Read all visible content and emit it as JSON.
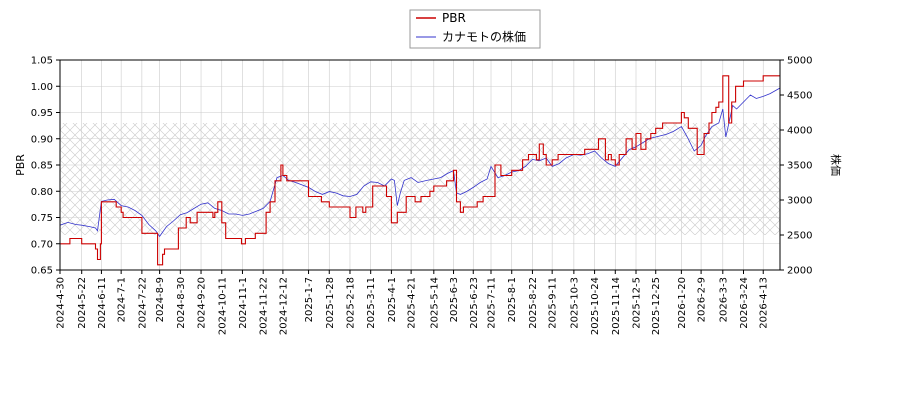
{
  "chart_data": {
    "type": "line",
    "legend": {
      "placement": "top-center",
      "entries": [
        {
          "name": "PBR",
          "color": "#cc0000"
        },
        {
          "name": "カナモトの株価",
          "color": "#3333cc"
        }
      ]
    },
    "ylabel_left": "PBR",
    "ylabel_right": "株価",
    "ylim_left": [
      0.65,
      1.05
    ],
    "ylim_right": [
      2000,
      5000
    ],
    "yticks_left": [
      "0.65",
      "0.70",
      "0.75",
      "0.80",
      "0.85",
      "0.90",
      "0.95",
      "1.00",
      "1.05"
    ],
    "yticks_right": [
      "2000",
      "2500",
      "3000",
      "3500",
      "4000",
      "4500",
      "5000"
    ],
    "xlim": [
      "2024-04-30",
      "2026-04-30"
    ],
    "xticks": [
      "2024-4-30",
      "2024-5-22",
      "2024-6-11",
      "2024-7-1",
      "2024-7-22",
      "2024-8-9",
      "2024-8-30",
      "2024-9-20",
      "2024-10-11",
      "2024-11-1",
      "2024-11-22",
      "2024-12-12",
      "2025-1-7",
      "2025-1-28",
      "2025-2-18",
      "2025-3-11",
      "2025-4-1",
      "2025-4-21",
      "2025-5-14",
      "2025-6-3",
      "2025-6-23",
      "2025-7-11",
      "2025-8-1",
      "2025-8-22",
      "2025-9-11",
      "2025-10-3",
      "2025-10-24",
      "2025-11-14",
      "2025-12-5",
      "2025-12-25",
      "2026-1-20",
      "2026-2-9",
      "2026-3-3",
      "2026-3-24",
      "2026-4-13"
    ],
    "grid": true,
    "hatch_band": [
      2500,
      4100
    ],
    "series": [
      {
        "name": "PBR",
        "axis": "left",
        "color": "#cc0000",
        "x": [
          "2024-04-30",
          "2024-05-08",
          "2024-05-10",
          "2024-05-20",
          "2024-05-22",
          "2024-06-03",
          "2024-06-05",
          "2024-06-07",
          "2024-06-10",
          "2024-06-11",
          "2024-06-13",
          "2024-06-20",
          "2024-06-26",
          "2024-07-01",
          "2024-07-03",
          "2024-07-12",
          "2024-07-22",
          "2024-08-05",
          "2024-08-07",
          "2024-08-09",
          "2024-08-12",
          "2024-08-14",
          "2024-08-26",
          "2024-08-28",
          "2024-08-30",
          "2024-09-05",
          "2024-09-09",
          "2024-09-16",
          "2024-09-20",
          "2024-10-02",
          "2024-10-04",
          "2024-10-07",
          "2024-10-11",
          "2024-10-15",
          "2024-10-21",
          "2024-10-31",
          "2024-11-04",
          "2024-11-08",
          "2024-11-14",
          "2024-11-18",
          "2024-11-22",
          "2024-11-25",
          "2024-11-29",
          "2024-12-04",
          "2024-12-06",
          "2024-12-10",
          "2024-12-12",
          "2024-12-16",
          "2024-12-24",
          "2025-01-07",
          "2025-01-14",
          "2025-01-20",
          "2025-01-28",
          "2025-02-04",
          "2025-02-07",
          "2025-02-14",
          "2025-02-18",
          "2025-02-24",
          "2025-03-03",
          "2025-03-06",
          "2025-03-11",
          "2025-03-13",
          "2025-03-20",
          "2025-03-27",
          "2025-04-01",
          "2025-04-04",
          "2025-04-07",
          "2025-04-11",
          "2025-04-16",
          "2025-04-21",
          "2025-04-25",
          "2025-05-01",
          "2025-05-06",
          "2025-05-10",
          "2025-05-14",
          "2025-05-22",
          "2025-05-27",
          "2025-06-03",
          "2025-06-06",
          "2025-06-10",
          "2025-06-13",
          "2025-06-23",
          "2025-06-27",
          "2025-07-03",
          "2025-07-09",
          "2025-07-11",
          "2025-07-15",
          "2025-07-21",
          "2025-07-25",
          "2025-08-01",
          "2025-08-06",
          "2025-08-12",
          "2025-08-18",
          "2025-08-22",
          "2025-08-26",
          "2025-08-29",
          "2025-09-02",
          "2025-09-05",
          "2025-09-08",
          "2025-09-11",
          "2025-09-17",
          "2025-09-22",
          "2025-09-29",
          "2025-10-03",
          "2025-10-09",
          "2025-10-14",
          "2025-10-24",
          "2025-10-28",
          "2025-11-04",
          "2025-11-07",
          "2025-11-10",
          "2025-11-14",
          "2025-11-18",
          "2025-11-21",
          "2025-11-25",
          "2025-12-01",
          "2025-12-05",
          "2025-12-08",
          "2025-12-10",
          "2025-12-15",
          "2025-12-20",
          "2025-12-25",
          "2026-01-01",
          "2026-01-07",
          "2026-01-10",
          "2026-01-15",
          "2026-01-20",
          "2026-01-23",
          "2026-01-27",
          "2026-02-02",
          "2026-02-05",
          "2026-02-09",
          "2026-02-12",
          "2026-02-17",
          "2026-02-20",
          "2026-02-24",
          "2026-02-27",
          "2026-03-03",
          "2026-03-06",
          "2026-03-09",
          "2026-03-12",
          "2026-03-16",
          "2026-03-20",
          "2026-03-24",
          "2026-03-30",
          "2026-04-06",
          "2026-04-13",
          "2026-04-20",
          "2026-04-30"
        ],
        "values": [
          0.7,
          0.7,
          0.71,
          0.71,
          0.7,
          0.7,
          0.69,
          0.67,
          0.7,
          0.78,
          0.78,
          0.78,
          0.77,
          0.76,
          0.75,
          0.75,
          0.72,
          0.72,
          0.66,
          0.66,
          0.68,
          0.69,
          0.69,
          0.73,
          0.73,
          0.75,
          0.74,
          0.76,
          0.76,
          0.75,
          0.76,
          0.78,
          0.74,
          0.71,
          0.71,
          0.7,
          0.71,
          0.71,
          0.72,
          0.72,
          0.72,
          0.76,
          0.78,
          0.82,
          0.82,
          0.85,
          0.83,
          0.82,
          0.82,
          0.79,
          0.79,
          0.78,
          0.77,
          0.77,
          0.77,
          0.77,
          0.75,
          0.77,
          0.76,
          0.77,
          0.77,
          0.81,
          0.81,
          0.79,
          0.74,
          0.74,
          0.76,
          0.76,
          0.79,
          0.79,
          0.78,
          0.79,
          0.79,
          0.8,
          0.81,
          0.81,
          0.82,
          0.84,
          0.78,
          0.76,
          0.77,
          0.77,
          0.78,
          0.79,
          0.79,
          0.79,
          0.85,
          0.83,
          0.83,
          0.84,
          0.84,
          0.86,
          0.87,
          0.87,
          0.86,
          0.89,
          0.87,
          0.85,
          0.85,
          0.86,
          0.87,
          0.87,
          0.87,
          0.87,
          0.87,
          0.88,
          0.88,
          0.9,
          0.86,
          0.87,
          0.86,
          0.85,
          0.87,
          0.87,
          0.9,
          0.88,
          0.91,
          0.91,
          0.88,
          0.9,
          0.91,
          0.92,
          0.93,
          0.93,
          0.93,
          0.93,
          0.95,
          0.94,
          0.92,
          0.92,
          0.87,
          0.87,
          0.91,
          0.93,
          0.95,
          0.96,
          0.97,
          1.02,
          1.02,
          0.93,
          0.97,
          1.0,
          1.0,
          1.01,
          1.01,
          1.01,
          1.02,
          1.02,
          1.02
        ]
      },
      {
        "name": "カナモトの株価",
        "axis": "right",
        "color": "#3333cc",
        "x": [
          "2024-04-30",
          "2024-05-08",
          "2024-05-16",
          "2024-05-22",
          "2024-05-30",
          "2024-06-05",
          "2024-06-07",
          "2024-06-11",
          "2024-06-17",
          "2024-06-24",
          "2024-07-01",
          "2024-07-08",
          "2024-07-15",
          "2024-07-22",
          "2024-07-29",
          "2024-08-05",
          "2024-08-09",
          "2024-08-16",
          "2024-08-23",
          "2024-08-30",
          "2024-09-06",
          "2024-09-13",
          "2024-09-20",
          "2024-09-27",
          "2024-10-04",
          "2024-10-11",
          "2024-10-18",
          "2024-10-25",
          "2024-11-01",
          "2024-11-08",
          "2024-11-15",
          "2024-11-22",
          "2024-11-29",
          "2024-12-06",
          "2024-12-12",
          "2024-12-18",
          "2024-12-25",
          "2025-01-07",
          "2025-01-14",
          "2025-01-21",
          "2025-01-28",
          "2025-02-04",
          "2025-02-11",
          "2025-02-18",
          "2025-02-25",
          "2025-03-04",
          "2025-03-11",
          "2025-03-18",
          "2025-03-25",
          "2025-04-01",
          "2025-04-04",
          "2025-04-07",
          "2025-04-10",
          "2025-04-14",
          "2025-04-21",
          "2025-04-28",
          "2025-05-07",
          "2025-05-14",
          "2025-05-21",
          "2025-05-28",
          "2025-06-03",
          "2025-06-06",
          "2025-06-10",
          "2025-06-16",
          "2025-06-23",
          "2025-06-30",
          "2025-07-07",
          "2025-07-11",
          "2025-07-18",
          "2025-07-25",
          "2025-08-01",
          "2025-08-08",
          "2025-08-15",
          "2025-08-22",
          "2025-08-29",
          "2025-09-05",
          "2025-09-11",
          "2025-09-18",
          "2025-09-25",
          "2025-10-03",
          "2025-10-10",
          "2025-10-17",
          "2025-10-24",
          "2025-10-31",
          "2025-11-07",
          "2025-11-14",
          "2025-11-21",
          "2025-11-28",
          "2025-12-05",
          "2025-12-12",
          "2025-12-19",
          "2025-12-25",
          "2026-01-05",
          "2026-01-12",
          "2026-01-20",
          "2026-01-26",
          "2026-02-02",
          "2026-02-09",
          "2026-02-13",
          "2026-02-20",
          "2026-02-27",
          "2026-03-03",
          "2026-03-06",
          "2026-03-10",
          "2026-03-13",
          "2026-03-17",
          "2026-03-24",
          "2026-03-31",
          "2026-04-06",
          "2026-04-13",
          "2026-04-20",
          "2026-04-30"
        ],
        "values": [
          2640,
          2680,
          2650,
          2640,
          2620,
          2600,
          2560,
          2980,
          3000,
          3010,
          2920,
          2900,
          2850,
          2780,
          2650,
          2560,
          2480,
          2620,
          2700,
          2790,
          2820,
          2880,
          2940,
          2960,
          2880,
          2850,
          2800,
          2800,
          2780,
          2800,
          2840,
          2880,
          2980,
          3320,
          3350,
          3280,
          3250,
          3180,
          3120,
          3080,
          3120,
          3100,
          3060,
          3050,
          3080,
          3200,
          3260,
          3250,
          3200,
          3300,
          3280,
          2920,
          3100,
          3280,
          3320,
          3250,
          3280,
          3300,
          3320,
          3380,
          3420,
          3100,
          3080,
          3120,
          3180,
          3250,
          3300,
          3480,
          3320,
          3350,
          3400,
          3420,
          3480,
          3580,
          3560,
          3600,
          3480,
          3520,
          3600,
          3650,
          3640,
          3660,
          3700,
          3600,
          3520,
          3480,
          3600,
          3720,
          3760,
          3820,
          3880,
          3900,
          3940,
          3980,
          4050,
          3900,
          3700,
          3780,
          3900,
          4050,
          4100,
          4300,
          3900,
          4150,
          4350,
          4300,
          4400,
          4500,
          4450,
          4480,
          4520,
          4600
        ]
      }
    ]
  }
}
